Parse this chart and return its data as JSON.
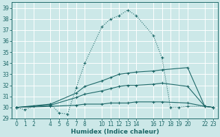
{
  "xlabel": "Humidex (Indice chaleur)",
  "bg_color": "#cce8e8",
  "grid_color": "#ffffff",
  "line_color": "#1a6666",
  "series": [
    {
      "x": [
        0,
        1,
        2,
        4,
        5,
        6,
        7,
        8,
        10,
        11,
        12,
        13,
        14,
        16,
        17,
        18,
        19,
        20,
        22,
        23
      ],
      "y": [
        30.0,
        29.8,
        30.1,
        30.3,
        29.5,
        29.4,
        31.8,
        34.0,
        37.3,
        38.0,
        38.3,
        38.8,
        38.3,
        36.5,
        34.5,
        30.0,
        30.0,
        30.1,
        30.1,
        30.0
      ],
      "linestyle": "dotted"
    },
    {
      "x": [
        0,
        4,
        7,
        8,
        10,
        11,
        12,
        13,
        14,
        16,
        17,
        20,
        22,
        23
      ],
      "y": [
        30.0,
        30.3,
        31.3,
        31.9,
        32.4,
        32.7,
        33.0,
        33.1,
        33.2,
        33.3,
        33.4,
        33.6,
        30.1,
        30.0
      ],
      "linestyle": "solid"
    },
    {
      "x": [
        0,
        4,
        7,
        8,
        10,
        11,
        12,
        13,
        14,
        16,
        17,
        20,
        22,
        23
      ],
      "y": [
        30.0,
        30.2,
        30.9,
        31.2,
        31.5,
        31.7,
        31.9,
        32.0,
        32.0,
        32.1,
        32.2,
        31.9,
        30.1,
        30.0
      ],
      "linestyle": "solid"
    },
    {
      "x": [
        0,
        4,
        7,
        8,
        10,
        11,
        12,
        13,
        14,
        16,
        17,
        20,
        22,
        23
      ],
      "y": [
        30.0,
        30.1,
        30.2,
        30.3,
        30.3,
        30.4,
        30.4,
        30.4,
        30.5,
        30.5,
        30.5,
        30.4,
        30.1,
        30.0
      ],
      "linestyle": "solid"
    }
  ],
  "xticks": [
    0,
    1,
    2,
    4,
    5,
    6,
    7,
    8,
    10,
    11,
    12,
    13,
    14,
    16,
    17,
    18,
    19,
    20,
    22,
    23
  ],
  "xlim": [
    -0.5,
    23.5
  ],
  "ylim": [
    29.0,
    39.5
  ],
  "yticks": [
    29,
    30,
    31,
    32,
    33,
    34,
    35,
    36,
    37,
    38,
    39
  ]
}
